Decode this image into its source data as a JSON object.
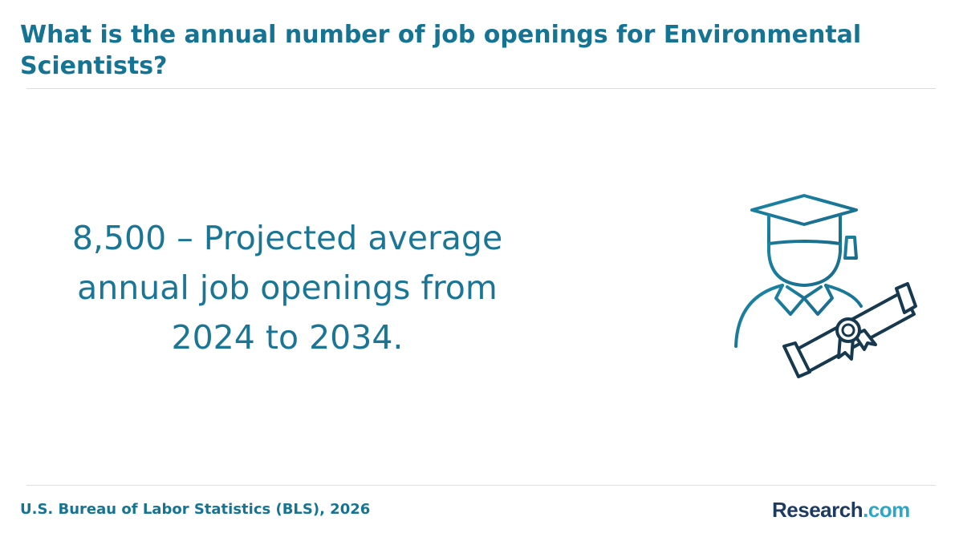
{
  "title": "What is the annual number of job openings for Environmental Scientists?",
  "stat": {
    "line1": "8,500 – Projected average",
    "line2": "annual job openings from",
    "line3": "2024 to 2034."
  },
  "icon": "graduate-with-diploma-icon",
  "source": "U.S. Bureau of Labor Statistics (BLS), 2026",
  "logo": {
    "main": "Research",
    "suffix": ".com"
  },
  "colors": {
    "title": "#157394",
    "stat": "#1b7696",
    "icon_primary": "#1a7f9f",
    "icon_dark": "#16394f",
    "logo_main": "#1e3a5f",
    "logo_accent": "#2aa7c9",
    "rule": "#dedede"
  }
}
